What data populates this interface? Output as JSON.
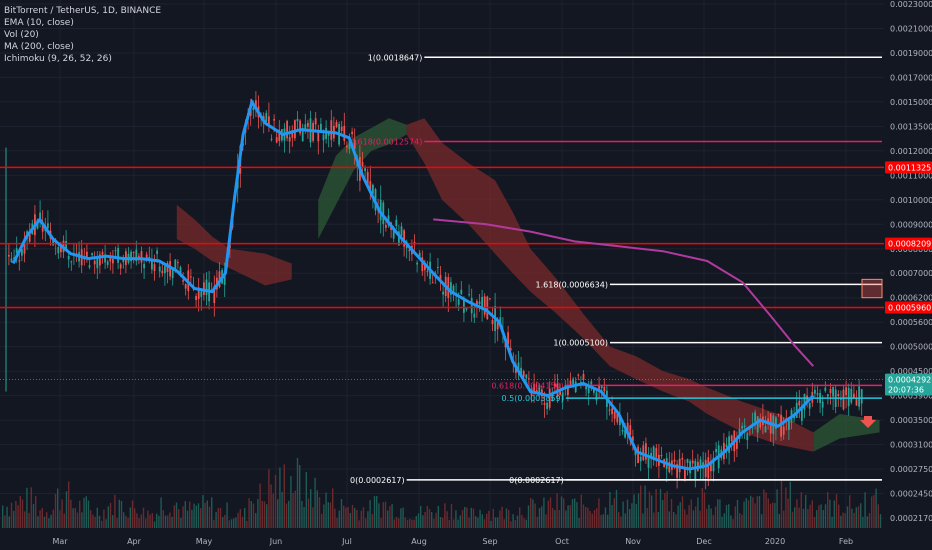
{
  "legend": {
    "title": "BitTorrent / TetherUS, 1D, BINANCE",
    "ema": "EMA (10, close)",
    "vol": "Vol (20)",
    "ma": "MA (200, close)",
    "ichimoku": "Ichimoku (9, 26, 52, 26)"
  },
  "chart_data": {
    "type": "line",
    "x_axis": {
      "tick_labels": [
        "Mar",
        "Apr",
        "May",
        "Jun",
        "Jul",
        "Aug",
        "Sep",
        "Oct",
        "Nov",
        "Dec",
        "2020",
        "Feb"
      ]
    },
    "y_axis": {
      "range": [
        0.0002,
        0.0023
      ],
      "tick_labels": [
        "0.0023000",
        "0.0021000",
        "0.0019000",
        "0.0017000",
        "0.0015000",
        "0.0013500",
        "0.0012000",
        "0.0011000",
        "0.0010000",
        "0.0009000",
        "0.0008000",
        "0.0007000",
        "0.0006200",
        "0.0005600",
        "0.0005000",
        "0.0004500",
        "0.0003900",
        "0.0003500",
        "0.0003100",
        "0.0002750",
        "0.0002450",
        "0.0002170"
      ]
    },
    "price_tags": [
      {
        "label": "0.0011325",
        "value": 0.0011325,
        "color": "#ff0000"
      },
      {
        "label": "0.0008209",
        "value": 0.0008209,
        "color": "#ff0000"
      },
      {
        "label": "0.0005960",
        "value": 0.000596,
        "color": "#ff0000"
      },
      {
        "label": "0.0004292",
        "value": 0.0004292,
        "color": "#26a69a"
      },
      {
        "label": "20:07:36",
        "value": 0.000405,
        "color": "#26a69a"
      }
    ],
    "horizontal_levels": [
      {
        "value": 0.0011325,
        "color": "#ff0000"
      },
      {
        "value": 0.0008209,
        "color": "#ff0000"
      },
      {
        "value": 0.000596,
        "color": "#ff0000"
      }
    ],
    "fib_levels": [
      {
        "label": "1(0.0018647)",
        "value": 0.0018647,
        "color": "#ffffff",
        "x_start": 0.48
      },
      {
        "label": "0.618(0.0012574)",
        "value": 0.0012574,
        "color": "#e91e63",
        "x_start": 0.48
      },
      {
        "label": "1.618(0.0006634)",
        "value": 0.0006634,
        "color": "#ffffff",
        "x_start": 0.69
      },
      {
        "label": "1(0.0005100)",
        "value": 0.00051,
        "color": "#ffffff",
        "x_start": 0.69
      },
      {
        "label": "0.618(0.0004150)",
        "value": 0.000415,
        "color": "#e91e63",
        "x_start": 0.64
      },
      {
        "label": "0.5(0.0003859)",
        "value": 0.0003859,
        "color": "#26c6da",
        "x_start": 0.64
      },
      {
        "label": "0(0.0002617)",
        "value": 0.0002617,
        "color": "#ffffff",
        "x_start": 0.46
      },
      {
        "label": "0(0.0002617)",
        "value": 0.0002617,
        "color": "#ffffff",
        "x_start": 0.64
      }
    ],
    "colors": {
      "ema": "#2196f3",
      "ma200": "#b03a9e",
      "cloud_bear": "#7a2a2a",
      "cloud_bull": "#2e5a35",
      "up": "#26a69a",
      "down": "#ef5350"
    },
    "ema_series": [
      [
        0.015,
        0.00074
      ],
      [
        0.03,
        0.00085
      ],
      [
        0.045,
        0.00092
      ],
      [
        0.06,
        0.00084
      ],
      [
        0.08,
        0.00078
      ],
      [
        0.1,
        0.00076
      ],
      [
        0.12,
        0.00077
      ],
      [
        0.14,
        0.00076
      ],
      [
        0.16,
        0.00076
      ],
      [
        0.18,
        0.00075
      ],
      [
        0.2,
        0.00071
      ],
      [
        0.22,
        0.00065
      ],
      [
        0.24,
        0.00064
      ],
      [
        0.255,
        0.0007
      ],
      [
        0.265,
        0.001
      ],
      [
        0.275,
        0.0013
      ],
      [
        0.285,
        0.0015
      ],
      [
        0.3,
        0.00137
      ],
      [
        0.32,
        0.0013
      ],
      [
        0.34,
        0.00133
      ],
      [
        0.36,
        0.00132
      ],
      [
        0.38,
        0.00131
      ],
      [
        0.395,
        0.00128
      ],
      [
        0.41,
        0.0011
      ],
      [
        0.43,
        0.00095
      ],
      [
        0.45,
        0.00086
      ],
      [
        0.47,
        0.00078
      ],
      [
        0.49,
        0.0007
      ],
      [
        0.51,
        0.00064
      ],
      [
        0.53,
        0.00061
      ],
      [
        0.55,
        0.00059
      ],
      [
        0.565,
        0.00056
      ],
      [
        0.58,
        0.00047
      ],
      [
        0.6,
        0.0004
      ],
      [
        0.62,
        0.00039
      ],
      [
        0.64,
        0.00041
      ],
      [
        0.66,
        0.00042
      ],
      [
        0.68,
        0.0004
      ],
      [
        0.7,
        0.00036
      ],
      [
        0.72,
        0.0003
      ],
      [
        0.74,
        0.00029
      ],
      [
        0.76,
        0.00028
      ],
      [
        0.78,
        0.000275
      ],
      [
        0.8,
        0.00028
      ],
      [
        0.82,
        0.0003
      ],
      [
        0.84,
        0.00033
      ],
      [
        0.86,
        0.00035
      ],
      [
        0.88,
        0.00034
      ],
      [
        0.9,
        0.00036
      ],
      [
        0.92,
        0.00039
      ]
    ],
    "ma200_series": [
      [
        0.49,
        0.00092
      ],
      [
        0.55,
        0.0009
      ],
      [
        0.6,
        0.00087
      ],
      [
        0.65,
        0.00083
      ],
      [
        0.7,
        0.00081
      ],
      [
        0.75,
        0.00079
      ],
      [
        0.8,
        0.00075
      ],
      [
        0.84,
        0.00067
      ],
      [
        0.87,
        0.00058
      ],
      [
        0.9,
        0.0005
      ],
      [
        0.92,
        0.00046
      ]
    ],
    "volume_profile": [
      0.3,
      0.35,
      0.25,
      0.4,
      0.28,
      0.22,
      0.3,
      0.26,
      0.2,
      0.32,
      0.24,
      0.28,
      0.22,
      0.18,
      0.4,
      0.55,
      0.62,
      0.48,
      0.36,
      0.28,
      0.24,
      0.3,
      0.26,
      0.2,
      0.22,
      0.25,
      0.18,
      0.22,
      0.2,
      0.24,
      0.26,
      0.3,
      0.28,
      0.32,
      0.34,
      0.3,
      0.36,
      0.38,
      0.32,
      0.34,
      0.28,
      0.26,
      0.3,
      0.34,
      0.4,
      0.36,
      0.32,
      0.3,
      0.28,
      0.34
    ]
  }
}
